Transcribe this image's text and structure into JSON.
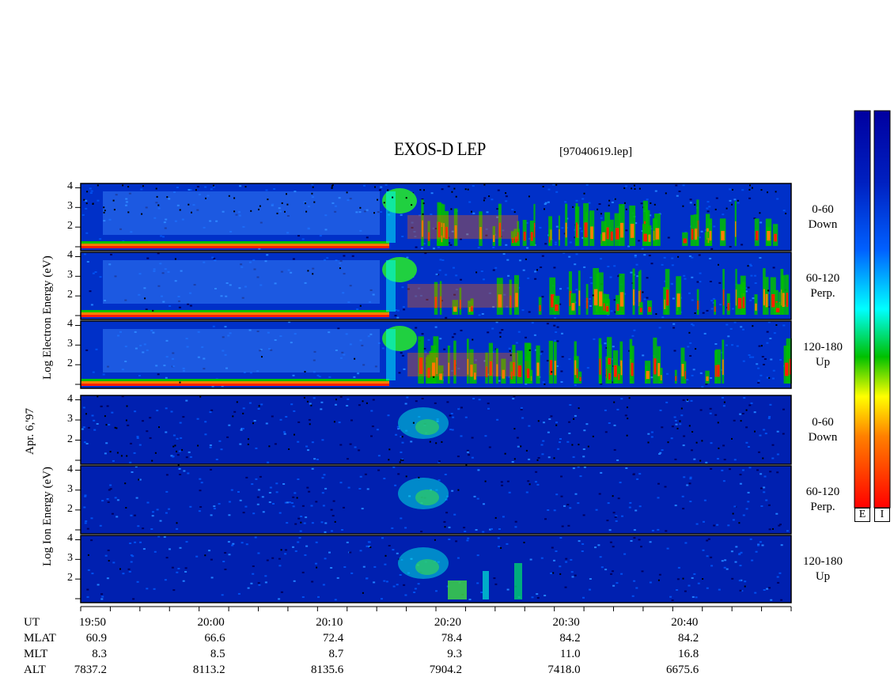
{
  "header": {
    "title": "EXOS-D LEP",
    "file": "[97040619.lep]"
  },
  "date_label": "Apr. 6,'97",
  "electron_axis_label": [
    "Log",
    "Electron",
    "Energy",
    "(eV)"
  ],
  "ion_axis_label": [
    "Log",
    "Ion",
    "Energy",
    "(eV)"
  ],
  "panels": [
    {
      "group": "electron",
      "angle": "0-60",
      "dir": "Down"
    },
    {
      "group": "electron",
      "angle": "60-120",
      "dir": "Perp."
    },
    {
      "group": "electron",
      "angle": "120-180",
      "dir": "Up"
    },
    {
      "group": "ion",
      "angle": "0-60",
      "dir": "Down"
    },
    {
      "group": "ion",
      "angle": "60-120",
      "dir": "Perp."
    },
    {
      "group": "ion",
      "angle": "120-180",
      "dir": "Up"
    }
  ],
  "y_ticks": [
    "4",
    "3",
    "2"
  ],
  "ion_y_ticks": [
    "4",
    "3",
    "2"
  ],
  "info_rows": [
    {
      "key": "UT",
      "values": [
        "19:50",
        "20:00",
        "20:10",
        "20:20",
        "20:30",
        "20:40"
      ]
    },
    {
      "key": "MLAT",
      "values": [
        "60.9",
        "66.6",
        "72.4",
        "78.4",
        "84.2",
        "84.2"
      ]
    },
    {
      "key": "MLT",
      "values": [
        "8.3",
        "8.5",
        "8.7",
        "9.3",
        "11.0",
        "16.8"
      ]
    },
    {
      "key": "ALT",
      "values": [
        "7837.2",
        "8113.2",
        "8135.6",
        "7904.2",
        "7418.0",
        "6675.6"
      ]
    }
  ],
  "colorbar": {
    "labels": [
      "E",
      "I"
    ],
    "colors": [
      "#ffffff",
      "#ff0000",
      "#ff8000",
      "#ffff00",
      "#00c000",
      "#00ffff",
      "#0060ff",
      "#0000a0"
    ]
  },
  "chart_data": {
    "type": "heatmap",
    "title": "EXOS-D LEP",
    "x_axis": "UT",
    "x_range": [
      "19:49",
      "20:49"
    ],
    "x_ticks": [
      "19:50",
      "20:00",
      "20:10",
      "20:20",
      "20:30",
      "20:40"
    ],
    "y_label_electron": "Log Electron Energy (eV)",
    "y_label_ion": "Log Ion Energy (eV)",
    "y_range": [
      1,
      4.1
    ],
    "y_ticks": [
      2,
      3,
      4
    ],
    "panels": [
      "0-60 Down",
      "60-120 Perp.",
      "120-180 Up",
      "0-60 Down",
      "60-120 Perp.",
      "120-180 Up"
    ],
    "colors": {
      "low": "#0000a0",
      "mid": "#00c000",
      "high": "#ff0000",
      "max": "#ffffff"
    }
  }
}
